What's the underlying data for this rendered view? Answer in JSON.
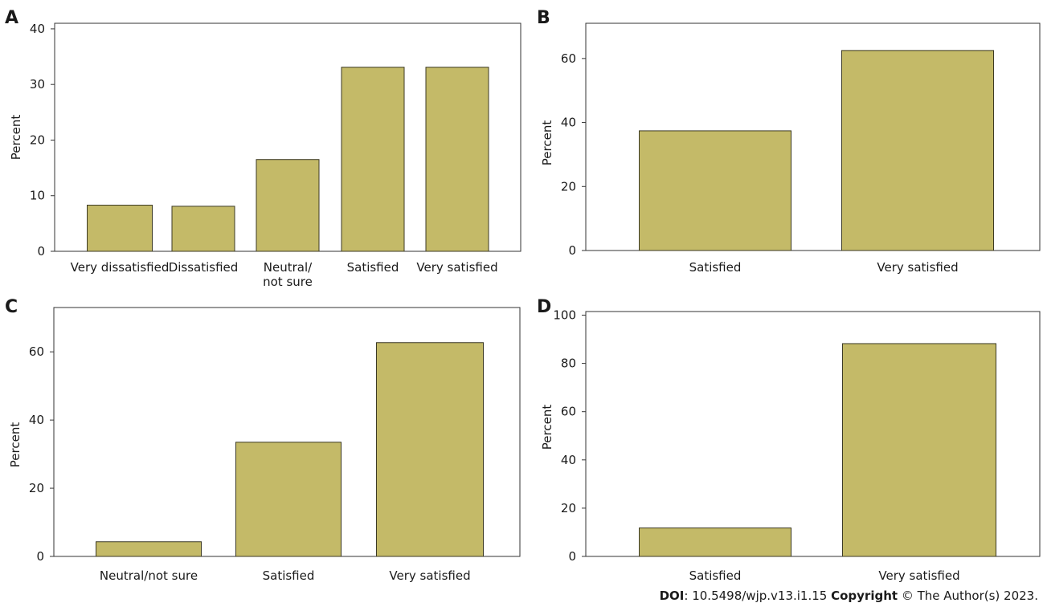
{
  "colors": {
    "bar_fill": "#c4ba68",
    "bar_stroke": "#3c3a24",
    "axis": "#333333"
  },
  "footer": {
    "doi_label": "DOI",
    "doi_value": ": 10.5498/wjp.v13.i1.15 ",
    "copyright_label": "Copyright",
    "copyright_value": " © The Author(s) 2023."
  },
  "chart_data": [
    {
      "panel": "A",
      "type": "bar",
      "ylabel": "Percent",
      "categories": [
        "Very dissatisfied",
        "Dissatisfied",
        "Neutral/\nnot sure",
        "Satisfied",
        "Very satisfied"
      ],
      "values": [
        8.3,
        8.1,
        16.5,
        33.1,
        33.1
      ],
      "yticks": [
        0,
        10,
        20,
        30,
        40
      ],
      "ylim": [
        0,
        41
      ]
    },
    {
      "panel": "B",
      "type": "bar",
      "ylabel": "Percent",
      "categories": [
        "Satisfied",
        "Very satisfied"
      ],
      "values": [
        37.4,
        62.5
      ],
      "yticks": [
        0,
        20,
        40,
        60
      ],
      "ylim": [
        0,
        71
      ]
    },
    {
      "panel": "C",
      "type": "bar",
      "ylabel": "Percent",
      "categories": [
        "Neutral/not sure",
        "Satisfied",
        "Very satisfied"
      ],
      "values": [
        4.3,
        33.5,
        62.7
      ],
      "yticks": [
        0,
        20,
        40,
        60
      ],
      "ylim": [
        0,
        73
      ]
    },
    {
      "panel": "D",
      "type": "bar",
      "ylabel": "Percent",
      "categories": [
        "Satisfied",
        "Very satisfied"
      ],
      "values": [
        11.8,
        88.2
      ],
      "yticks": [
        0,
        20,
        40,
        60,
        80,
        100
      ],
      "ylim": [
        0,
        101.5
      ]
    }
  ]
}
